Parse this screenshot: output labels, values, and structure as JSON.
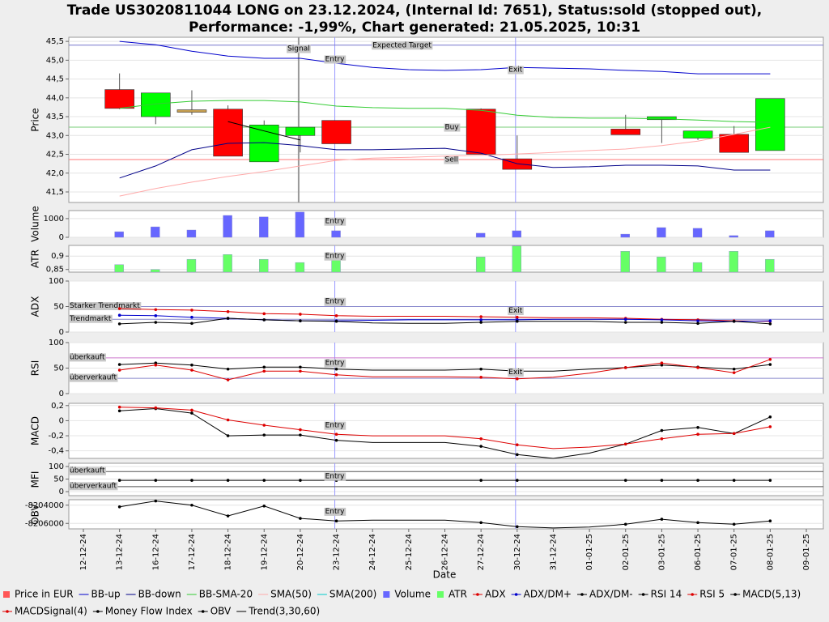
{
  "chart_data": {
    "type": "stock",
    "title": [
      "Trade US3020811044 LONG on 23.12.2024, (Internal Id: 7651), Status:sold (stopped out),",
      "Performance: -1,99%, Chart generated: 21.05.2025, 10:31"
    ],
    "xlabel": "Date",
    "categories": [
      "12-12-24",
      "13-12-24",
      "16-12-24",
      "17-12-24",
      "18-12-24",
      "19-12-24",
      "20-12-24",
      "23-12-24",
      "24-12-24",
      "25-12-24",
      "26-12-24",
      "27-12-24",
      "30-12-24",
      "31-12-24",
      "01-01-25",
      "02-01-25",
      "03-01-25",
      "06-01-25",
      "07-01-25",
      "08-01-25",
      "09-01-25"
    ],
    "events": [
      {
        "label": "Signal",
        "at": "20-12-24",
        "color": "#999999"
      },
      {
        "label": "Entry",
        "at": "23-12-24",
        "color": "#9999ff"
      },
      {
        "label": "Exit",
        "at": "30-12-24",
        "color": "#9999ff"
      }
    ],
    "panels": [
      {
        "type": "candlestick",
        "ylabel": "Price",
        "ylim": [
          41.22,
          45.61
        ],
        "yticks": [
          {
            "value": 41.5,
            "label": "41,5"
          },
          {
            "value": 42,
            "label": "42,0"
          },
          {
            "value": 42.5,
            "label": "42,5"
          },
          {
            "value": 43,
            "label": "43,0"
          },
          {
            "value": 43.5,
            "label": "43,5"
          },
          {
            "value": 44,
            "label": "44,0"
          },
          {
            "value": 44.5,
            "label": "44,5"
          },
          {
            "value": 45,
            "label": "45,0"
          },
          {
            "value": 45.5,
            "label": "45,5"
          }
        ],
        "series": [
          {
            "name": "Price in EUR",
            "kind": "candle",
            "color": "#ff5555",
            "up_color": "#00ff00",
            "down_color": "#ff0000",
            "flat_color": "#c8a050",
            "open": [
              null,
              44.22,
              43.5,
              43.65,
              43.7,
              42.3,
              43.0,
              43.4,
              null,
              null,
              null,
              43.7,
              42.38,
              null,
              null,
              43.17,
              43.42,
              42.93,
              43.03,
              42.6,
              null
            ],
            "high": [
              null,
              44.65,
              44.13,
              44.2,
              43.8,
              43.4,
              43.22,
              43.4,
              null,
              null,
              null,
              43.72,
              43.0,
              null,
              null,
              43.55,
              43.5,
              43.12,
              43.25,
              43.98,
              null
            ],
            "low": [
              null,
              43.7,
              43.3,
              43.55,
              42.45,
              42.3,
              42.55,
              42.78,
              null,
              null,
              null,
              42.5,
              42.1,
              null,
              null,
              43.02,
              42.8,
              42.88,
              42.55,
              42.6,
              null
            ],
            "close": [
              null,
              43.72,
              44.13,
              43.65,
              42.45,
              43.28,
              43.22,
              42.78,
              null,
              null,
              null,
              42.5,
              42.1,
              null,
              null,
              43.02,
              43.5,
              43.12,
              42.55,
              43.98,
              null
            ]
          },
          {
            "name": "BB-up",
            "color": "#0000cc",
            "values": [
              null,
              45.5,
              45.41,
              45.24,
              45.11,
              45.05,
              45.05,
              44.92,
              44.81,
              44.75,
              44.73,
              44.75,
              44.81,
              44.79,
              44.77,
              44.73,
              44.7,
              44.64,
              44.64,
              44.64,
              null
            ]
          },
          {
            "name": "BB-down",
            "color": "#000088",
            "values": [
              null,
              41.87,
              42.19,
              42.62,
              42.79,
              42.81,
              42.73,
              42.62,
              42.62,
              42.64,
              42.66,
              42.53,
              42.25,
              42.15,
              42.17,
              42.21,
              42.21,
              42.19,
              42.08,
              42.08,
              null
            ]
          },
          {
            "name": "BB-SMA-20",
            "color": "#33cc33",
            "values": [
              null,
              43.72,
              43.84,
              43.91,
              43.93,
              43.93,
              43.89,
              43.78,
              43.74,
              43.72,
              43.72,
              43.67,
              43.54,
              43.48,
              43.46,
              43.46,
              43.44,
              43.41,
              43.37,
              43.35,
              null
            ]
          },
          {
            "name": "SMA(50)",
            "color": "#ffaaaa",
            "values": [
              null,
              41.39,
              41.59,
              41.76,
              41.91,
              42.04,
              42.19,
              42.34,
              42.4,
              42.42,
              42.45,
              42.47,
              42.51,
              42.55,
              42.6,
              42.64,
              42.73,
              42.85,
              43.03,
              43.22,
              null
            ]
          },
          {
            "name": "SMA(200)",
            "color": "#00cccc",
            "values": [
              null,
              null,
              null,
              null,
              null,
              null,
              null,
              null,
              null,
              null,
              null,
              null,
              null,
              null,
              null,
              null,
              null,
              null,
              null,
              null,
              null
            ]
          }
        ],
        "hlines": [
          {
            "label": "Expected Target",
            "value": 45.4,
            "color": "#7777cc",
            "at": "24-12-24"
          },
          {
            "label": "Buy",
            "value": 43.22,
            "color": "#77cc77",
            "at": "26-12-24"
          },
          {
            "label": "Sell",
            "value": 42.36,
            "color": "#ff7777",
            "at": "26-12-24"
          }
        ]
      },
      {
        "type": "bar",
        "ylabel": "Volume",
        "ylim": [
          0,
          1430
        ],
        "yticks": [
          0,
          1000
        ],
        "series": [
          {
            "name": "Volume",
            "color": "#6666ff",
            "values": [
              null,
              300,
              560,
              390,
              1170,
              1090,
              1350,
              350,
              null,
              null,
              null,
              220,
              350,
              null,
              null,
              170,
              520,
              480,
              90,
              350,
              null
            ]
          }
        ]
      },
      {
        "type": "bar",
        "ylabel": "ATR",
        "ylim": [
          0.84,
          0.94
        ],
        "yticks": [
          {
            "value": 0.85,
            "label": "0,85"
          },
          {
            "value": 0.9,
            "label": "0,9"
          }
        ],
        "series": [
          {
            "name": "ATR",
            "color": "#66ff66",
            "values": [
              null,
              0.868,
              0.85,
              0.888,
              0.906,
              0.888,
              0.876,
              0.897,
              null,
              null,
              null,
              0.897,
              0.938,
              null,
              null,
              0.918,
              0.897,
              0.876,
              0.918,
              0.888,
              null
            ]
          }
        ]
      },
      {
        "type": "line",
        "ylabel": "ADX",
        "ylim": [
          0,
          100
        ],
        "yticks": [
          0,
          50,
          100
        ],
        "series": [
          {
            "name": "ADX",
            "color": "#dd0000",
            "markers": true,
            "values": [
              null,
              46,
              44,
              43,
              40,
              36,
              35,
              32,
              31,
              31,
              31,
              30,
              29,
              28,
              28,
              27,
              25,
              24,
              22,
              21,
              null
            ]
          },
          {
            "name": "ADX/DM+",
            "color": "#0000cc",
            "markers": true,
            "values": [
              null,
              33,
              32,
              29,
              27,
              24,
              22,
              22,
              23,
              24,
              24,
              24,
              24,
              25,
              25,
              25,
              24,
              22,
              21,
              22,
              null
            ]
          },
          {
            "name": "ADX/DM-",
            "color": "#000000",
            "markers": true,
            "values": [
              null,
              16,
              19,
              17,
              27,
              24,
              22,
              21,
              18,
              17,
              17,
              19,
              21,
              21,
              21,
              19,
              19,
              17,
              21,
              16,
              null
            ]
          }
        ],
        "hlines": [
          {
            "label": "Starker Trendmarkt",
            "value": 50,
            "color": "#8888cc"
          },
          {
            "label": "Trendmarkt",
            "value": 25,
            "color": "#8888cc"
          }
        ]
      },
      {
        "type": "line",
        "ylabel": "RSI",
        "ylim": [
          0,
          100
        ],
        "yticks": [
          0,
          50,
          100
        ],
        "series": [
          {
            "name": "RSI 14",
            "color": "#000000",
            "markers": true,
            "values": [
              null,
              57,
              60,
              56,
              48,
              52,
              52,
              48,
              46,
              46,
              46,
              48,
              44,
              44,
              48,
              51,
              56,
              52,
              48,
              57,
              null
            ]
          },
          {
            "name": "RSI 5",
            "color": "#dd0000",
            "markers": true,
            "values": [
              null,
              46,
              56,
              46,
              27,
              44,
              44,
              37,
              33,
              33,
              33,
              32,
              29,
              32,
              40,
              51,
              60,
              51,
              41,
              67,
              null
            ]
          }
        ],
        "hlines": [
          {
            "label": "überkauft",
            "value": 70,
            "color": "#cc77cc"
          },
          {
            "label": "überverkauft",
            "value": 30,
            "color": "#8888cc"
          }
        ]
      },
      {
        "type": "line",
        "ylabel": "MACD",
        "ylim": [
          -0.5,
          0.23
        ],
        "yticks": [
          {
            "value": -0.4,
            "label": "-0,4"
          },
          {
            "value": -0.2,
            "label": "-0,2"
          },
          0,
          {
            "value": 0.2,
            "label": "0,2"
          }
        ],
        "series": [
          {
            "name": "MACD(5,13)",
            "color": "#000000",
            "markers": true,
            "values": [
              null,
              0.13,
              0.16,
              0.1,
              -0.2,
              -0.19,
              -0.19,
              -0.26,
              -0.29,
              -0.29,
              -0.29,
              -0.34,
              -0.45,
              -0.5,
              -0.43,
              -0.31,
              -0.13,
              -0.09,
              -0.17,
              0.05,
              null
            ]
          },
          {
            "name": "MACDSignal(4)",
            "color": "#dd0000",
            "markers": true,
            "values": [
              null,
              0.18,
              0.17,
              0.14,
              0.01,
              -0.06,
              -0.12,
              -0.18,
              -0.2,
              -0.2,
              -0.2,
              -0.24,
              -0.32,
              -0.37,
              -0.35,
              -0.31,
              -0.24,
              -0.18,
              -0.17,
              -0.08,
              null
            ]
          }
        ]
      },
      {
        "type": "line",
        "ylabel": "MFI",
        "ylim": [
          -16,
          113
        ],
        "yticks": [
          0,
          50,
          100
        ],
        "series": [
          {
            "name": "Money Flow Index",
            "color": "#000000",
            "markers": true,
            "values": [
              null,
              45,
              45,
              45,
              45,
              45,
              45,
              45,
              45,
              45,
              45,
              45,
              45,
              45,
              45,
              45,
              45,
              45,
              45,
              45,
              null
            ]
          }
        ],
        "hlines": [
          {
            "label": "überkauft",
            "value": 80,
            "color": "#555555"
          },
          {
            "label": "überverkauft",
            "value": 20,
            "color": "#555555"
          }
        ]
      },
      {
        "type": "line",
        "ylabel": "OBV",
        "ylim": [
          -8206600,
          -8203400
        ],
        "yticks": [
          -8206000,
          -8204000
        ],
        "series": [
          {
            "name": "OBV",
            "color": "#000000",
            "markers": true,
            "values": [
              null,
              -8204180,
              -8203545,
              -8204000,
              -8205180,
              -8204090,
              -8205450,
              -8205730,
              -8205640,
              -8205640,
              -8205640,
              -8205910,
              -8206360,
              -8206500,
              -8206400,
              -8206090,
              -8205540,
              -8205910,
              -8206090,
              -8205730,
              null
            ]
          }
        ]
      }
    ],
    "trend": {
      "name": "Trend(3,30,60)",
      "color": "#000000",
      "values": [
        null,
        null,
        null,
        null,
        43.37,
        43.12,
        42.88,
        null,
        null,
        null,
        null,
        null,
        null,
        null,
        null,
        null,
        null,
        null,
        null,
        null,
        null
      ]
    }
  }
}
